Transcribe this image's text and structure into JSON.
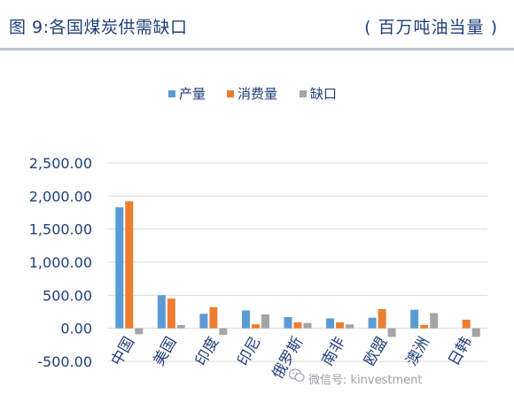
{
  "header": {
    "title": "图 9:各国煤炭供需缺口",
    "unit": "( 百万吨油当量 )"
  },
  "watermark": "微信号: kinvestment",
  "colors": {
    "title": "#1f3f7a",
    "axis_text": "#1f3f7a",
    "grid": "#d9d9d9",
    "production": "#5b9bd5",
    "consumption": "#ed7d31",
    "gap": "#a5a5a5"
  },
  "chart_data": {
    "type": "bar",
    "categories": [
      "中国",
      "美国",
      "印度",
      "印尼",
      "俄罗斯",
      "南非",
      "欧盟",
      "澳洲",
      "日韩"
    ],
    "series": [
      {
        "name": "产量",
        "values": [
          1830,
          500,
          220,
          270,
          170,
          150,
          160,
          280,
          0
        ]
      },
      {
        "name": "消费量",
        "values": [
          1920,
          450,
          320,
          60,
          90,
          90,
          290,
          50,
          130
        ]
      },
      {
        "name": "缺口",
        "values": [
          -90,
          50,
          -100,
          210,
          80,
          60,
          -130,
          230,
          -130
        ]
      }
    ],
    "y_ticks": [
      "2,500.00",
      "2,000.00",
      "1,500.00",
      "1,000.00",
      "500.00",
      "0.00",
      "-500.00"
    ],
    "y_tick_values": [
      2500,
      2000,
      1500,
      1000,
      500,
      0,
      -500
    ],
    "ylim": [
      -500,
      2500
    ],
    "legend_position": "top-center",
    "grid": true
  }
}
